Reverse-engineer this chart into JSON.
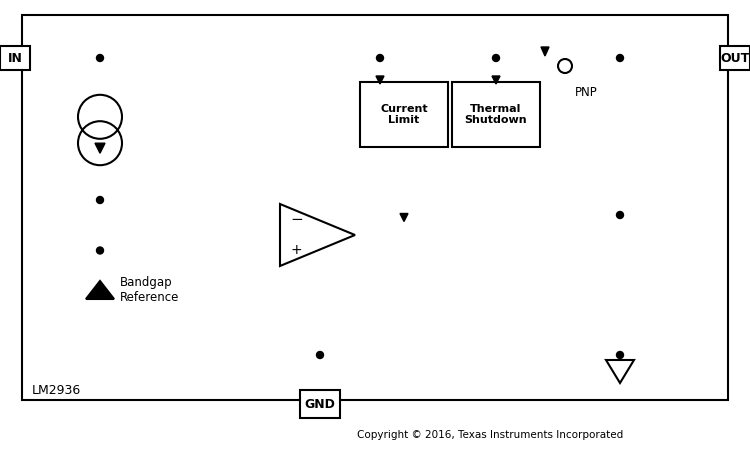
{
  "bg_color": "#ffffff",
  "line_color": "#000000",
  "label_LM2936": "LM2936",
  "label_IN": "IN",
  "label_OUT": "OUT",
  "label_GND": "GND",
  "label_PNP": "PNP",
  "label_current_limit": "Current\nLimit",
  "label_thermal": "Thermal\nShutdown",
  "label_bandgap": "Bandgap\nReference",
  "label_copyright": "Copyright © 2016, Texas Instruments Incorporated",
  "label_minus": "−",
  "label_plus": "+"
}
